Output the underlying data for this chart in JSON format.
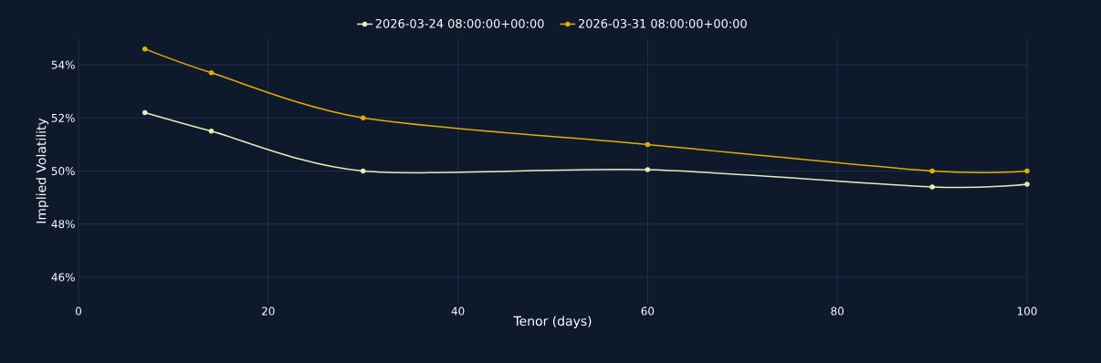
{
  "chart_data": {
    "type": "line",
    "xlabel": "Tenor (days)",
    "ylabel": "Implied Volatility",
    "x": [
      7,
      14,
      30,
      60,
      90,
      100
    ],
    "series": [
      {
        "name": "2026-03-24 08:00:00+00:00",
        "color": "#e6ecbc",
        "values": [
          52.2,
          51.5,
          50.0,
          50.05,
          49.4,
          49.5
        ]
      },
      {
        "name": "2026-03-31 08:00:00+00:00",
        "color": "#e0b000",
        "values": [
          54.6,
          53.7,
          52.0,
          51.0,
          50.0,
          50.0
        ]
      }
    ],
    "xlim": [
      0,
      100
    ],
    "ylim": [
      45,
      55
    ],
    "xticks": [
      0,
      20,
      40,
      60,
      80,
      100
    ],
    "yticks": [
      {
        "value": 46,
        "label": "46%"
      },
      {
        "value": 48,
        "label": "48%"
      },
      {
        "value": 50,
        "label": "50%"
      },
      {
        "value": 52,
        "label": "52%"
      },
      {
        "value": 54,
        "label": "54%"
      }
    ],
    "grid": true,
    "legend": "top",
    "marker": "circle",
    "line_style": "solid"
  }
}
